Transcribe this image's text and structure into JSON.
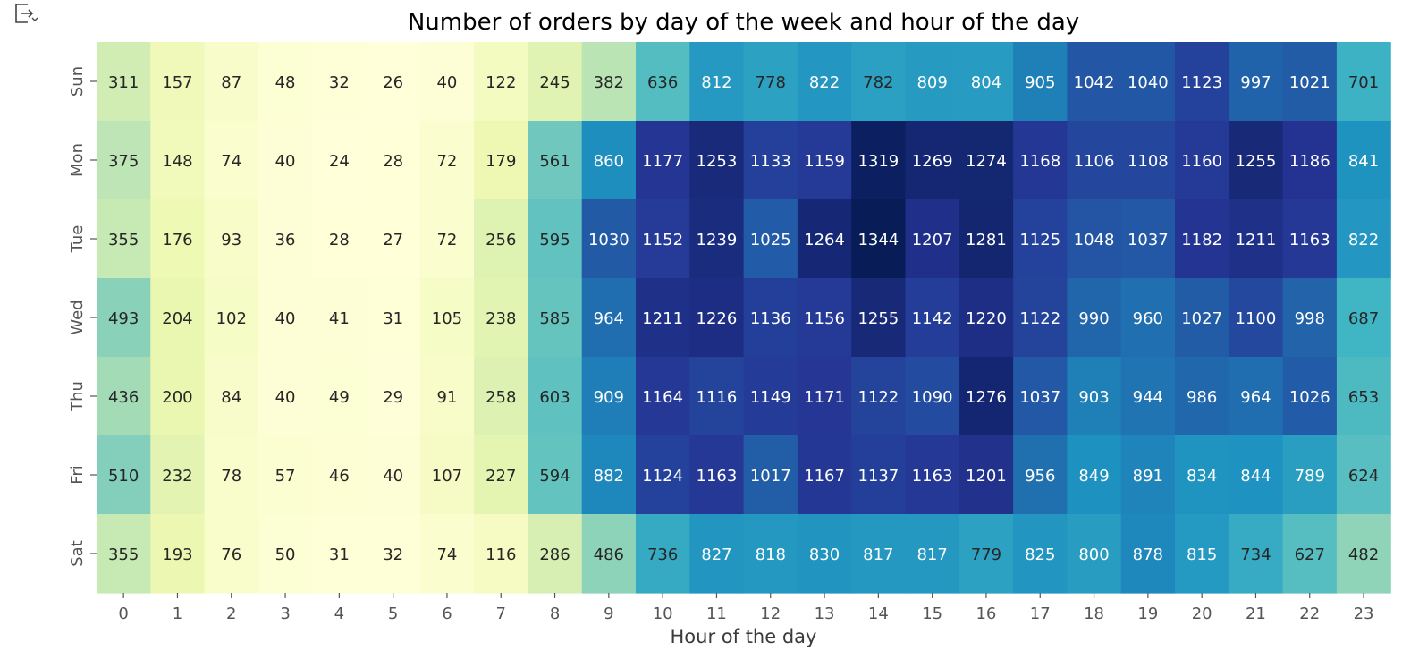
{
  "output_toggle_icon": "expand-output-icon",
  "chart_data": {
    "type": "heatmap",
    "title": "Number of orders by day of the week and hour of the day",
    "xlabel": "Hour of the day",
    "ylabel": "",
    "x_categories": [
      "0",
      "1",
      "2",
      "3",
      "4",
      "5",
      "6",
      "7",
      "8",
      "9",
      "10",
      "11",
      "12",
      "13",
      "14",
      "15",
      "16",
      "17",
      "18",
      "19",
      "20",
      "21",
      "22",
      "23"
    ],
    "y_categories": [
      "Sun",
      "Mon",
      "Tue",
      "Wed",
      "Thu",
      "Fri",
      "Sat"
    ],
    "colormap": "YlGnBu",
    "annotated": true,
    "colorbar": false,
    "values": [
      [
        311,
        157,
        87,
        48,
        32,
        26,
        40,
        122,
        245,
        382,
        636,
        812,
        778,
        822,
        782,
        809,
        804,
        905,
        1042,
        1040,
        1123,
        997,
        1021,
        701
      ],
      [
        375,
        148,
        74,
        40,
        24,
        28,
        72,
        179,
        561,
        860,
        1177,
        1253,
        1133,
        1159,
        1319,
        1269,
        1274,
        1168,
        1106,
        1108,
        1160,
        1255,
        1186,
        841
      ],
      [
        355,
        176,
        93,
        36,
        28,
        27,
        72,
        256,
        595,
        1030,
        1152,
        1239,
        1025,
        1264,
        1344,
        1207,
        1281,
        1125,
        1048,
        1037,
        1182,
        1211,
        1163,
        822
      ],
      [
        493,
        204,
        102,
        40,
        41,
        31,
        105,
        238,
        585,
        964,
        1211,
        1226,
        1136,
        1156,
        1255,
        1142,
        1220,
        1122,
        990,
        960,
        1027,
        1100,
        998,
        687
      ],
      [
        436,
        200,
        84,
        40,
        49,
        29,
        91,
        258,
        603,
        909,
        1164,
        1116,
        1149,
        1171,
        1122,
        1090,
        1276,
        1037,
        903,
        944,
        986,
        964,
        1026,
        653
      ],
      [
        510,
        232,
        78,
        57,
        46,
        40,
        107,
        227,
        594,
        882,
        1124,
        1163,
        1017,
        1167,
        1137,
        1163,
        1201,
        956,
        849,
        891,
        834,
        844,
        789,
        624
      ],
      [
        355,
        193,
        76,
        50,
        31,
        32,
        74,
        116,
        286,
        486,
        736,
        827,
        818,
        830,
        817,
        817,
        779,
        825,
        800,
        878,
        815,
        734,
        627,
        482
      ]
    ]
  }
}
